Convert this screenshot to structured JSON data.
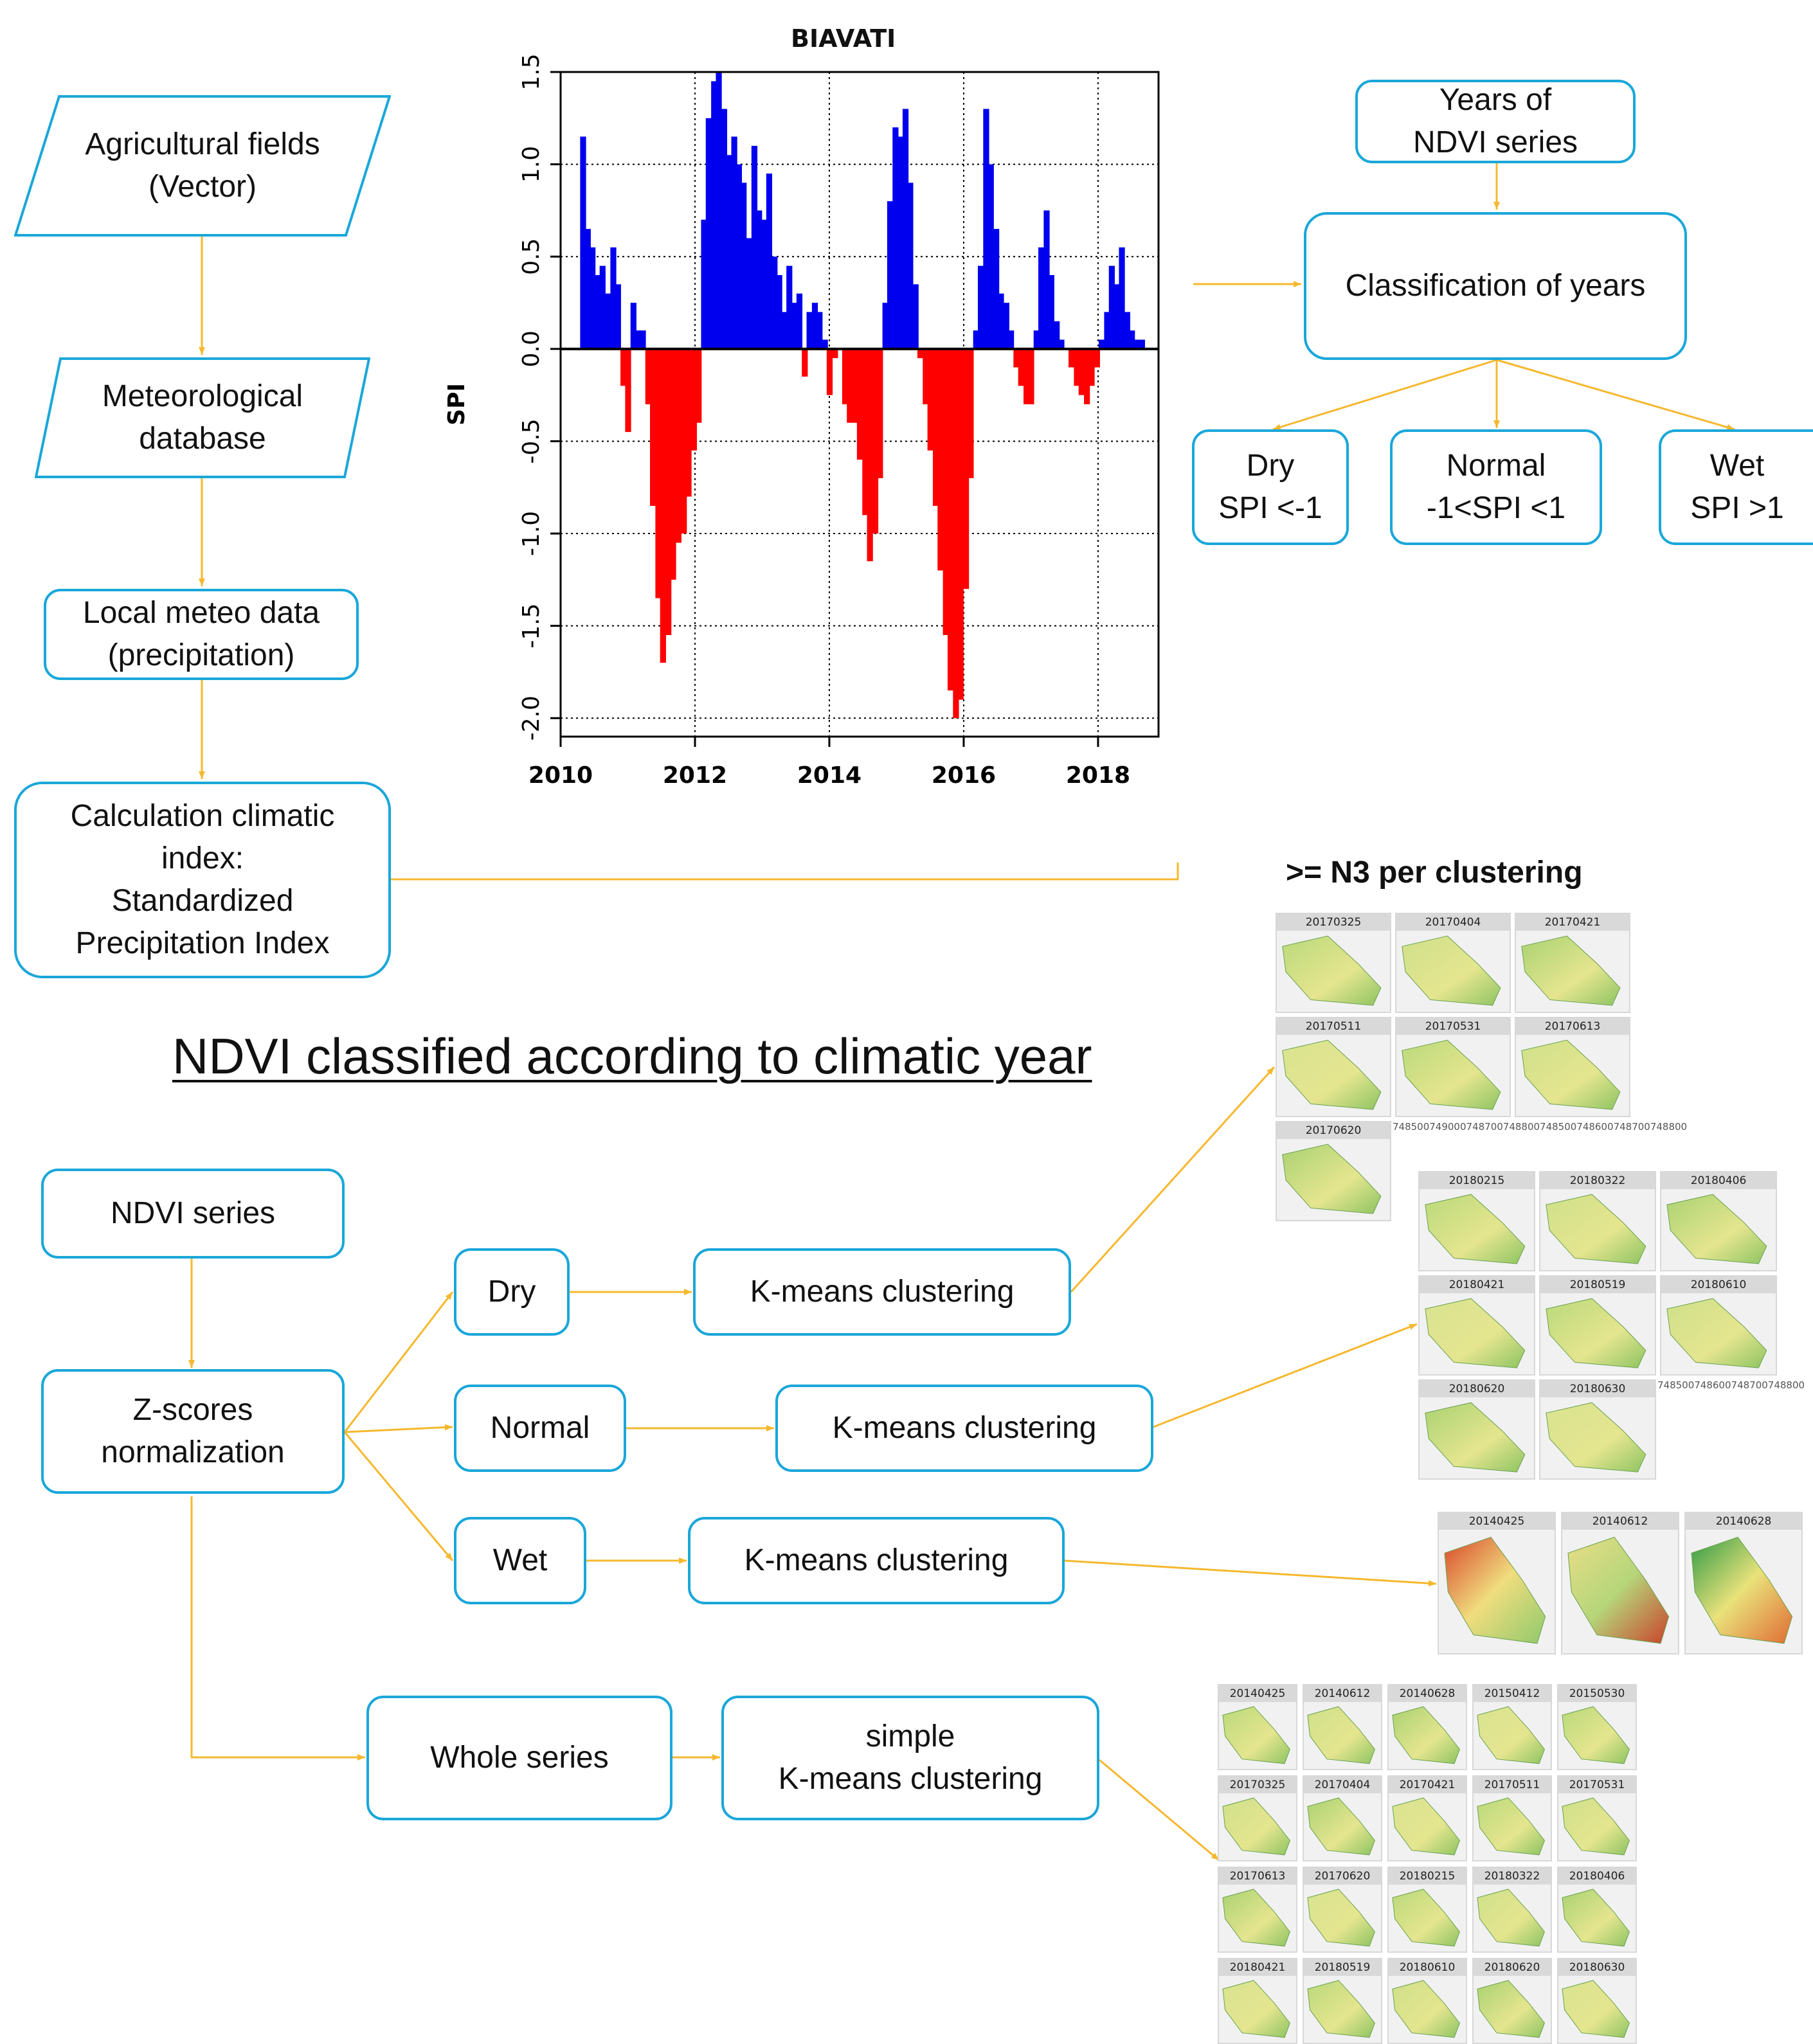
{
  "flow_left": {
    "agri": "Agricultural fields\n(Vector)",
    "meteo_db": "Meteorological\ndatabase",
    "local": "Local meteo data\n(precipitation)",
    "calc": "Calculation climatic\nindex:\nStandardized\nPrecipitation Index"
  },
  "flow_right": {
    "years": "Years of\nNDVI series",
    "classification": "Classification of years",
    "dry": "Dry\nSPI <-1",
    "normal": "Normal\n-1<SPI <1",
    "wet": "Wet\nSPI >1"
  },
  "section_title": "NDVI classified according to climatic year",
  "n3_label": ">= N3 per clustering",
  "flow_bottom": {
    "ndvi_series": "NDVI series",
    "zscores": "Z-scores\nnormalization",
    "dry": "Dry",
    "normal": "Normal",
    "wet": "Wet",
    "whole": "Whole series",
    "km_dry": "K-means clustering",
    "km_normal": "K-means clustering",
    "km_wet": "K-means clustering",
    "km_whole": "simple\nK-means clustering"
  },
  "colors": {
    "connector": "#f5b82e",
    "box_border": "#1aa7d9",
    "positive": "#0000ee",
    "negative": "#ff0000"
  },
  "chart_data": {
    "type": "bar",
    "title": "BIAVATI",
    "xlabel": "",
    "ylabel": "SPI",
    "xlim": [
      2010,
      2018.9
    ],
    "ylim": [
      -2.1,
      1.5
    ],
    "xticks": [
      "2010",
      "2012",
      "2014",
      "2016",
      "2018"
    ],
    "yticks": [
      "1.5",
      "1.0",
      "0.5",
      "0.0",
      "-0.5",
      "-1.0",
      "-1.5",
      "-2.0"
    ],
    "grid": true,
    "x": [
      2010.33,
      2010.4,
      2010.47,
      2010.55,
      2010.62,
      2010.7,
      2010.78,
      2010.85,
      2010.93,
      2011.0,
      2011.08,
      2011.15,
      2011.22,
      2011.3,
      2011.37,
      2011.45,
      2011.52,
      2011.6,
      2011.67,
      2011.75,
      2011.83,
      2011.9,
      2011.98,
      2012.05,
      2012.13,
      2012.2,
      2012.28,
      2012.35,
      2012.43,
      2012.5,
      2012.58,
      2012.65,
      2012.72,
      2012.8,
      2012.88,
      2012.95,
      2013.03,
      2013.1,
      2013.18,
      2013.25,
      2013.33,
      2013.4,
      2013.48,
      2013.55,
      2013.63,
      2013.7,
      2013.78,
      2013.85,
      2013.93,
      2014.0,
      2014.08,
      2014.15,
      2014.23,
      2014.3,
      2014.38,
      2014.45,
      2014.53,
      2014.6,
      2014.68,
      2014.75,
      2014.83,
      2014.9,
      2014.98,
      2015.05,
      2015.13,
      2015.2,
      2015.28,
      2015.35,
      2015.43,
      2015.5,
      2015.58,
      2015.65,
      2015.73,
      2015.8,
      2015.88,
      2015.95,
      2016.03,
      2016.1,
      2016.18,
      2016.25,
      2016.33,
      2016.4,
      2016.48,
      2016.55,
      2016.63,
      2016.7,
      2016.78,
      2016.85,
      2016.93,
      2017.0,
      2017.08,
      2017.15,
      2017.23,
      2017.3,
      2017.38,
      2017.45,
      2017.52,
      2017.6,
      2017.68,
      2017.75,
      2017.83,
      2017.9,
      2017.98,
      2018.05,
      2018.13,
      2018.2,
      2018.28,
      2018.35,
      2018.43,
      2018.5,
      2018.58,
      2018.65
    ],
    "values": [
      1.15,
      0.65,
      0.55,
      0.4,
      0.45,
      0.3,
      0.55,
      0.35,
      -0.2,
      -0.45,
      0.25,
      0.1,
      0.1,
      -0.3,
      -0.85,
      -1.35,
      -1.7,
      -1.55,
      -1.25,
      -1.05,
      -1.0,
      -0.8,
      -0.55,
      -0.4,
      0.7,
      1.25,
      1.45,
      1.5,
      1.3,
      1.05,
      1.15,
      1.0,
      0.9,
      0.6,
      1.1,
      0.75,
      0.7,
      0.95,
      0.5,
      0.4,
      0.2,
      0.45,
      0.25,
      0.3,
      -0.15,
      0.2,
      0.25,
      0.2,
      0.05,
      -0.25,
      -0.05,
      0.0,
      -0.3,
      -0.4,
      -0.4,
      -0.6,
      -0.9,
      -1.15,
      -1.0,
      -0.7,
      0.25,
      0.8,
      1.2,
      1.15,
      1.3,
      0.9,
      0.35,
      -0.05,
      -0.3,
      -0.55,
      -0.85,
      -1.2,
      -1.55,
      -1.85,
      -2.0,
      -1.9,
      -1.3,
      -0.7,
      0.1,
      0.45,
      1.3,
      1.0,
      0.65,
      0.3,
      0.25,
      0.1,
      -0.1,
      -0.2,
      -0.3,
      -0.3,
      0.1,
      0.55,
      0.75,
      0.4,
      0.15,
      0.05,
      0.0,
      -0.1,
      -0.2,
      -0.25,
      -0.3,
      -0.2,
      -0.1,
      0.05,
      0.2,
      0.45,
      0.35,
      0.55,
      0.2,
      0.1,
      0.05,
      0.05
    ]
  },
  "thumbnails": {
    "dry": [
      "20170325",
      "20170404",
      "20170421",
      "20170511",
      "20170531",
      "20170613",
      "20170620"
    ],
    "normal": [
      "20180215",
      "20180322",
      "20180406",
      "20180421",
      "20180519",
      "20180610",
      "20180620",
      "20180630"
    ],
    "wet": [
      "20140425",
      "20140612",
      "20140628"
    ],
    "whole": [
      "20140425",
      "20140612",
      "20140628",
      "20150412",
      "20150530",
      "20170325",
      "20170404",
      "20170421",
      "20170511",
      "20170531",
      "20170613",
      "20170620",
      "20180215",
      "20180322",
      "20180406",
      "20180421",
      "20180519",
      "20180610",
      "20180620",
      "20180630"
    ],
    "scale_dry": "748500749000748700748800748500748600748700748800",
    "scale_normal": "748500748600748700748800"
  }
}
